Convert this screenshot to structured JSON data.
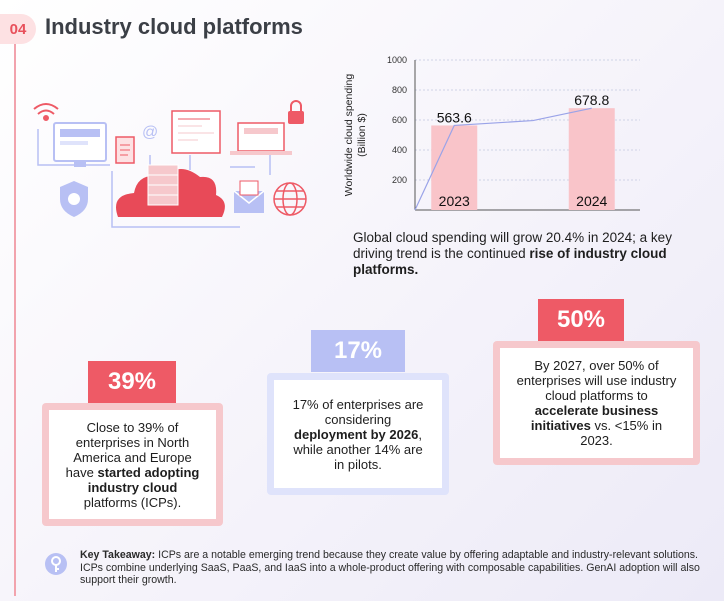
{
  "header": {
    "number": "04",
    "title": "Industry cloud platforms"
  },
  "chart_data": {
    "type": "bar",
    "categories": [
      "2023",
      "2024"
    ],
    "values": [
      563.6,
      678.8
    ],
    "value_labels": [
      "563.6",
      "678.8"
    ],
    "ylabel": "Worldwide cloud spending\n(Billion $)",
    "ylabel_lines": [
      "Worldwide cloud spending",
      "(Billion $)"
    ],
    "yticks": [
      200,
      400,
      600,
      800,
      1000
    ],
    "ytick_labels": [
      "200",
      "400",
      "600",
      "800",
      "1000"
    ],
    "ylim": [
      0,
      1000
    ],
    "grid": true,
    "trend_line": true,
    "bar_color": "#f9c4c9"
  },
  "caption": {
    "part1": "Global cloud spending will grow 20.4% in 2024; a key driving trend is the continued ",
    "bold": "rise of industry cloud platforms."
  },
  "stats": {
    "s39": {
      "value": "39%",
      "text1": "Close to 39% of enterprises in North America and Europe have ",
      "bold": "started adopting industry cloud",
      "text2": " platforms (ICPs)."
    },
    "s17": {
      "value": "17%",
      "text1": "17% of enterprises are considering ",
      "bold": "deployment by 2026",
      "text2": ", while another 14% are in pilots."
    },
    "s50": {
      "value": "50%",
      "text1": "By 2027, over 50% of enterprises will use industry cloud platforms to ",
      "bold": "accelerate business initiatives",
      "text2": " vs. <15% in 2023."
    }
  },
  "takeaway": {
    "label": "Key Takeaway:",
    "text": " ICPs are a notable emerging trend because they create value by offering adaptable and industry-relevant solutions. ICPs combine underlying SaaS, PaaS, and IaaS into a whole-product offering with composable capabilities. GenAI adoption will also support their growth."
  },
  "colors": {
    "accent": "#ee5a66",
    "soft_pink": "#f6c8cc",
    "soft_blue": "#b8c0f4",
    "blue_card": "#dfe3fb"
  }
}
